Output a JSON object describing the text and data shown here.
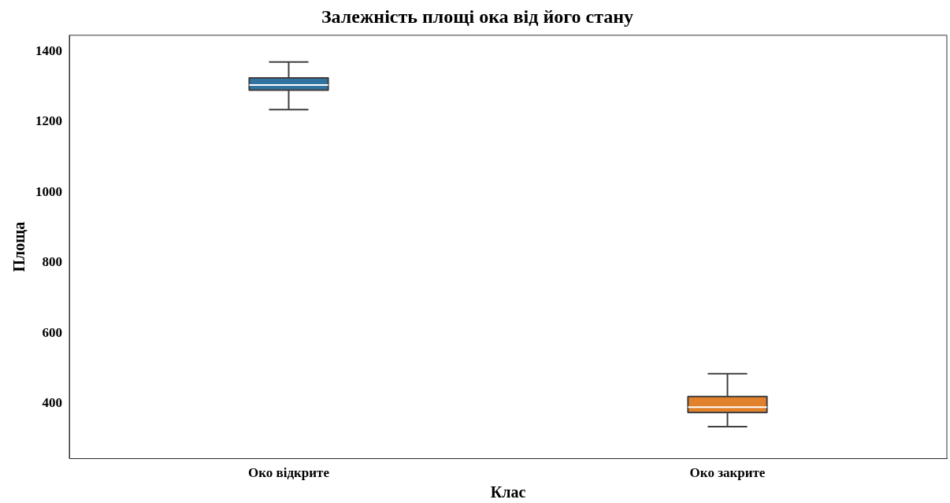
{
  "chart_data": {
    "type": "box",
    "title": "Залежність площі ока від його стану",
    "xlabel": "Клас",
    "ylabel": "Площа",
    "categories": [
      "Око відкрите",
      "Око закрите"
    ],
    "colors": [
      "#3274a1",
      "#e1812c"
    ],
    "boxes": [
      {
        "low": 1235,
        "q1": 1290,
        "median": 1305,
        "q3": 1325,
        "high": 1370
      },
      {
        "low": 335,
        "q1": 375,
        "median": 390,
        "q3": 420,
        "high": 485
      }
    ],
    "ylim": [
      244,
      1446
    ],
    "yticks": [
      400,
      600,
      800,
      1000,
      1200,
      1400
    ],
    "grid": false,
    "legend": false
  }
}
